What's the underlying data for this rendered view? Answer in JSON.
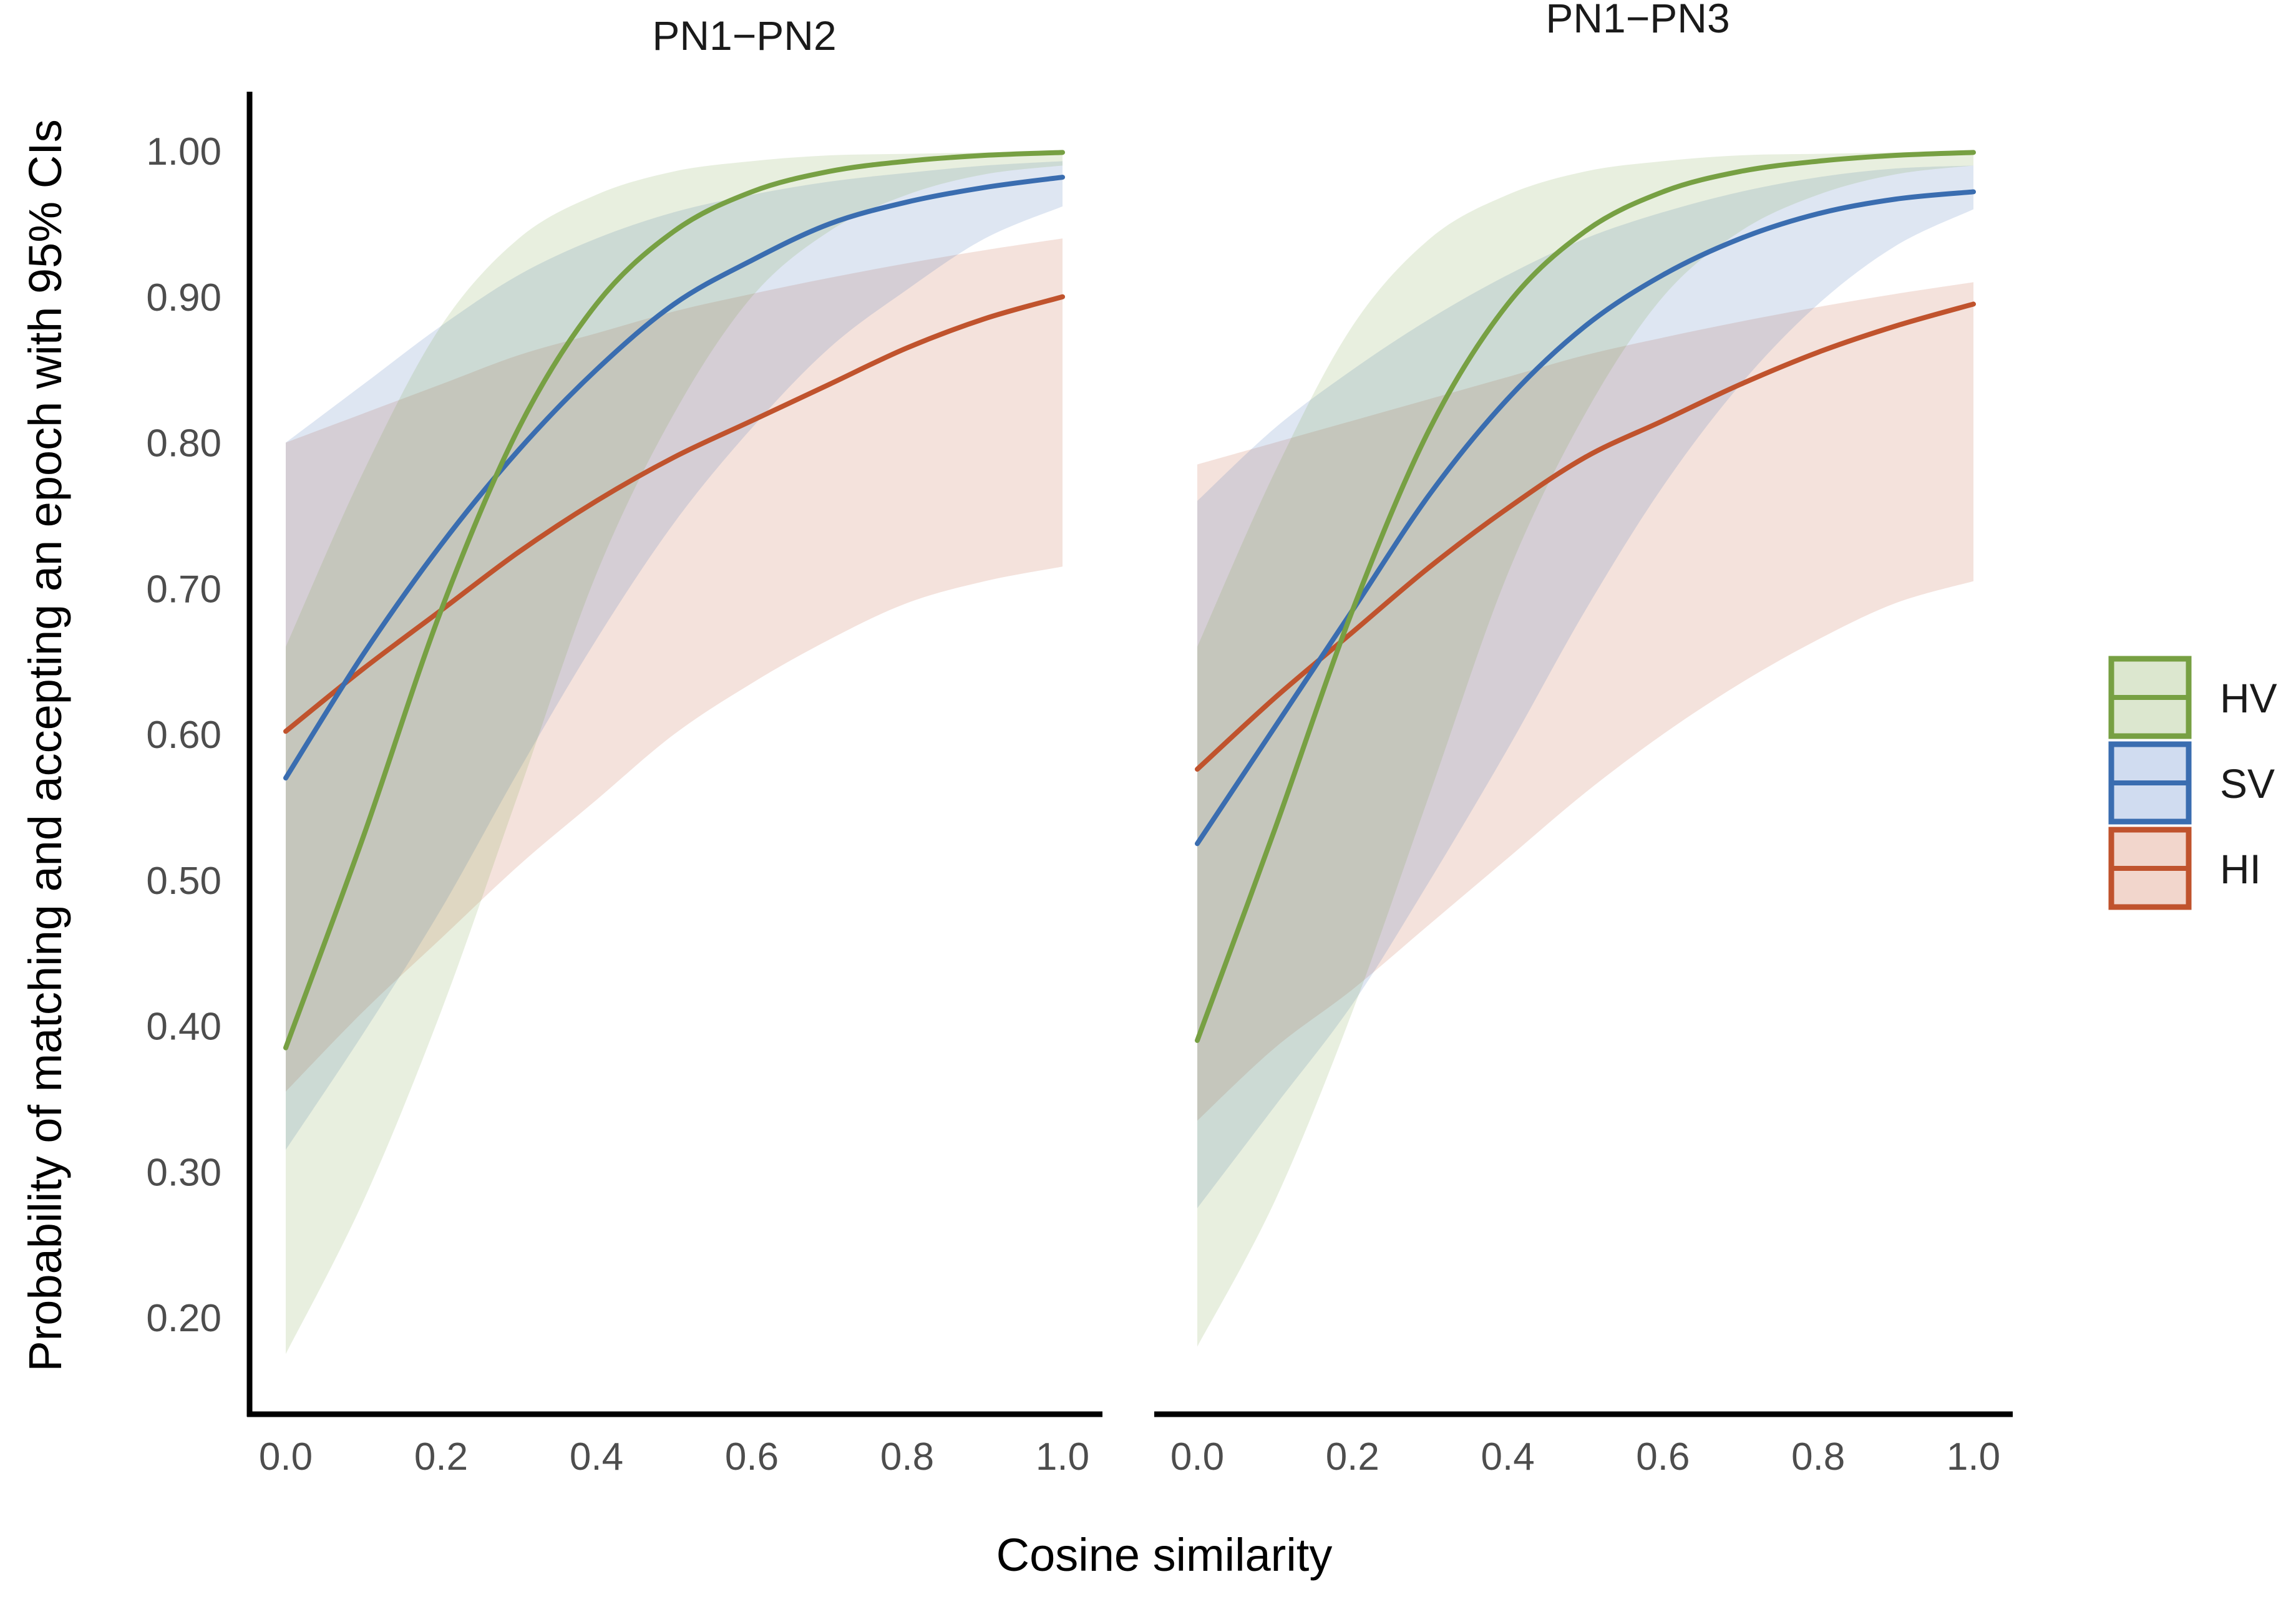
{
  "chart_data": {
    "type": "line",
    "xlabel": "Cosine similarity",
    "ylabel": "Probability of matching and accepting an epoch with 95% CIs",
    "xlim": [
      0,
      1
    ],
    "ylim": [
      0.13,
      1.04
    ],
    "x_ticks": [
      "0.0",
      "0.2",
      "0.4",
      "0.6",
      "0.8",
      "1.0"
    ],
    "y_ticks": [
      "1.00",
      "0.90",
      "0.80",
      "0.70",
      "0.60",
      "0.50",
      "0.40",
      "0.30",
      "0.20"
    ],
    "legend": {
      "placement": "right",
      "entries": [
        {
          "key": "HV",
          "label": "HV",
          "color": "#77A043",
          "fill": "#DCE7CF"
        },
        {
          "key": "SV",
          "label": "SV",
          "color": "#3A6DB0",
          "fill": "#D0DCF0"
        },
        {
          "key": "HI",
          "label": "HI",
          "color": "#C0532D",
          "fill": "#F2D6CC"
        }
      ]
    },
    "panels": [
      {
        "title": "PN1−PN2",
        "x": [
          0.0,
          0.1,
          0.2,
          0.3,
          0.4,
          0.5,
          0.6,
          0.7,
          0.8,
          0.9,
          1.0
        ],
        "series": [
          {
            "name": "HV",
            "values": [
              0.385,
              0.53,
              0.685,
              0.81,
              0.895,
              0.945,
              0.972,
              0.986,
              0.993,
              0.997,
              0.999
            ],
            "lower": [
              0.175,
              0.28,
              0.41,
              0.56,
              0.71,
              0.82,
              0.9,
              0.945,
              0.97,
              0.984,
              0.99
            ],
            "upper": [
              0.66,
              0.78,
              0.88,
              0.94,
              0.97,
              0.986,
              0.993,
              0.997,
              0.998,
              0.999,
              1.0
            ]
          },
          {
            "name": "SV",
            "values": [
              0.57,
              0.655,
              0.73,
              0.795,
              0.85,
              0.895,
              0.925,
              0.95,
              0.965,
              0.975,
              0.982
            ],
            "lower": [
              0.315,
              0.395,
              0.48,
              0.575,
              0.665,
              0.745,
              0.81,
              0.865,
              0.905,
              0.94,
              0.962
            ],
            "upper": [
              0.8,
              0.84,
              0.88,
              0.915,
              0.94,
              0.958,
              0.97,
              0.979,
              0.985,
              0.99,
              0.993
            ]
          },
          {
            "name": "HI",
            "values": [
              0.602,
              0.645,
              0.685,
              0.725,
              0.76,
              0.79,
              0.815,
              0.84,
              0.865,
              0.885,
              0.9
            ],
            "lower": [
              0.355,
              0.41,
              0.46,
              0.51,
              0.555,
              0.6,
              0.635,
              0.665,
              0.69,
              0.705,
              0.715
            ],
            "upper": [
              0.8,
              0.82,
              0.84,
              0.86,
              0.875,
              0.89,
              0.902,
              0.913,
              0.923,
              0.932,
              0.94
            ]
          }
        ]
      },
      {
        "title": "PN1−PN3",
        "x": [
          0.0,
          0.1,
          0.2,
          0.3,
          0.4,
          0.5,
          0.6,
          0.7,
          0.8,
          0.9,
          1.0
        ],
        "series": [
          {
            "name": "HV",
            "values": [
              0.39,
              0.535,
              0.685,
              0.81,
              0.895,
              0.945,
              0.972,
              0.986,
              0.993,
              0.997,
              0.999
            ],
            "lower": [
              0.18,
              0.28,
              0.41,
              0.56,
              0.71,
              0.82,
              0.9,
              0.945,
              0.97,
              0.984,
              0.99
            ],
            "upper": [
              0.66,
              0.78,
              0.88,
              0.94,
              0.97,
              0.986,
              0.993,
              0.997,
              0.998,
              0.999,
              1.0
            ]
          },
          {
            "name": "SV",
            "values": [
              0.525,
              0.605,
              0.685,
              0.765,
              0.83,
              0.88,
              0.915,
              0.94,
              0.957,
              0.967,
              0.972
            ],
            "lower": [
              0.275,
              0.345,
              0.415,
              0.5,
              0.59,
              0.685,
              0.77,
              0.84,
              0.895,
              0.935,
              0.96
            ],
            "upper": [
              0.76,
              0.81,
              0.85,
              0.885,
              0.915,
              0.94,
              0.958,
              0.972,
              0.982,
              0.988,
              0.99
            ]
          },
          {
            "name": "HI",
            "values": [
              0.576,
              0.625,
              0.67,
              0.715,
              0.755,
              0.79,
              0.815,
              0.84,
              0.862,
              0.88,
              0.895
            ],
            "lower": [
              0.335,
              0.385,
              0.425,
              0.47,
              0.515,
              0.56,
              0.6,
              0.635,
              0.665,
              0.69,
              0.705
            ],
            "upper": [
              0.785,
              0.8,
              0.815,
              0.83,
              0.845,
              0.86,
              0.872,
              0.883,
              0.893,
              0.902,
              0.91
            ]
          }
        ]
      }
    ]
  }
}
